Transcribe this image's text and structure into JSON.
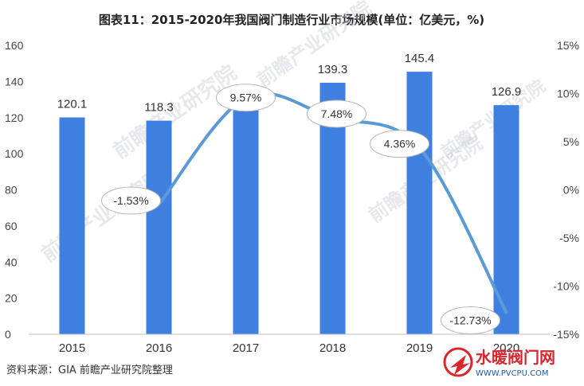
{
  "chart_data": {
    "type": "bar",
    "title": "图表11：2015-2020年我国阀门制造行业市场规模(单位：亿美元，%)",
    "categories": [
      "2015",
      "2016",
      "2017",
      "2018",
      "2019",
      "2020"
    ],
    "series": [
      {
        "values": [
          120.1,
          118.3,
          128.8,
          139.3,
          145.4,
          126.9
        ],
        "axis": "left",
        "kind": "bar",
        "color": "#3f7fe0"
      },
      {
        "values": [
          null,
          -1.53,
          9.57,
          7.48,
          4.36,
          -12.73
        ],
        "axis": "right",
        "kind": "line",
        "color": "#5b9bd5"
      }
    ],
    "bar_labels": [
      "120.1",
      "118.3",
      "",
      "139.3",
      "145.4",
      "126.9"
    ],
    "line_labels": [
      "",
      "-1.53%",
      "9.57%",
      "7.48%",
      "4.36%",
      "-12.73%"
    ],
    "ylim": [
      0,
      160
    ],
    "yticks": [
      "0",
      "20",
      "40",
      "60",
      "80",
      "100",
      "120",
      "140",
      "160"
    ],
    "y2lim": [
      -15,
      15
    ],
    "y2ticks": [
      "-15%",
      "-10%",
      "-5%",
      "0%",
      "5%",
      "10%",
      "15%"
    ],
    "grid": false,
    "legend": "none"
  },
  "source": "资料来源：GIA 前瞻产业研究院整理",
  "watermark": "前瞻产业研究院",
  "logo": {
    "name": "水暖阀门网",
    "url": "WWW.PVCPU.COM"
  }
}
